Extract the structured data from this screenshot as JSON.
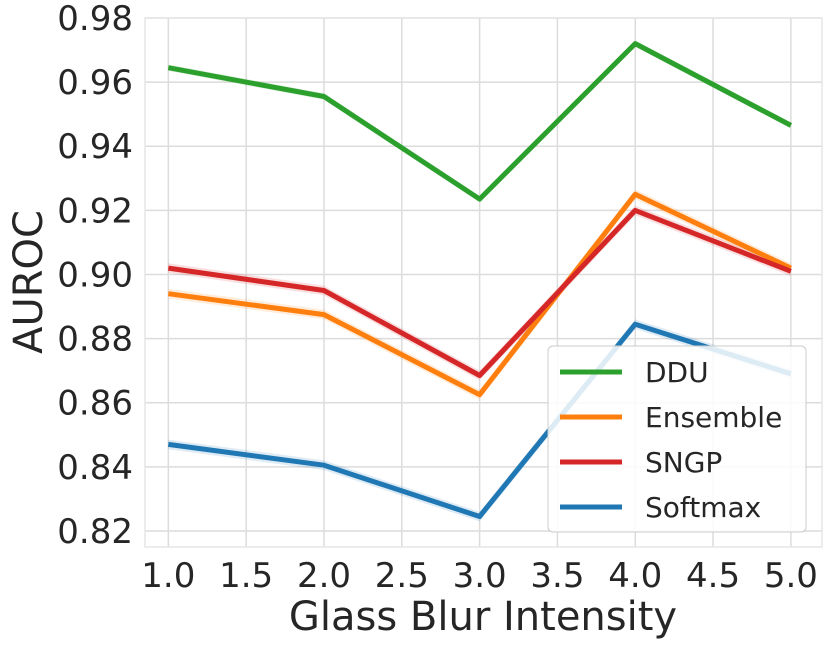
{
  "chart_data": {
    "type": "line",
    "title": "",
    "xlabel": "Glass Blur Intensity",
    "ylabel": "AUROC",
    "x": [
      1.0,
      2.0,
      3.0,
      4.0,
      5.0
    ],
    "xlim": [
      0.85,
      5.2
    ],
    "ylim": [
      0.815,
      0.98
    ],
    "xticks": [
      1.0,
      1.5,
      2.0,
      2.5,
      3.0,
      3.5,
      4.0,
      4.5,
      5.0
    ],
    "xtick_labels": [
      "1.0",
      "1.5",
      "2.0",
      "2.5",
      "3.0",
      "3.5",
      "4.0",
      "4.5",
      "5.0"
    ],
    "yticks": [
      0.82,
      0.84,
      0.86,
      0.88,
      0.9,
      0.92,
      0.94,
      0.96,
      0.98
    ],
    "ytick_labels": [
      "0.82",
      "0.84",
      "0.86",
      "0.88",
      "0.90",
      "0.92",
      "0.94",
      "0.96",
      "0.98"
    ],
    "grid": true,
    "legend_position": "lower-right",
    "series": [
      {
        "name": "DDU",
        "color": "#2ca02c",
        "values": [
          0.9645,
          0.9555,
          0.9235,
          0.972,
          0.9465
        ],
        "band": 0.001
      },
      {
        "name": "Ensemble",
        "color": "#ff7f0e",
        "values": [
          0.894,
          0.8875,
          0.8625,
          0.925,
          0.902
        ],
        "band": 0.0015
      },
      {
        "name": "SNGP",
        "color": "#d62728",
        "values": [
          0.902,
          0.895,
          0.8685,
          0.92,
          0.901
        ],
        "band": 0.0015
      },
      {
        "name": "Softmax",
        "color": "#1f77b4",
        "values": [
          0.847,
          0.8405,
          0.8245,
          0.8845,
          0.869
        ],
        "band": 0.0015
      }
    ]
  }
}
